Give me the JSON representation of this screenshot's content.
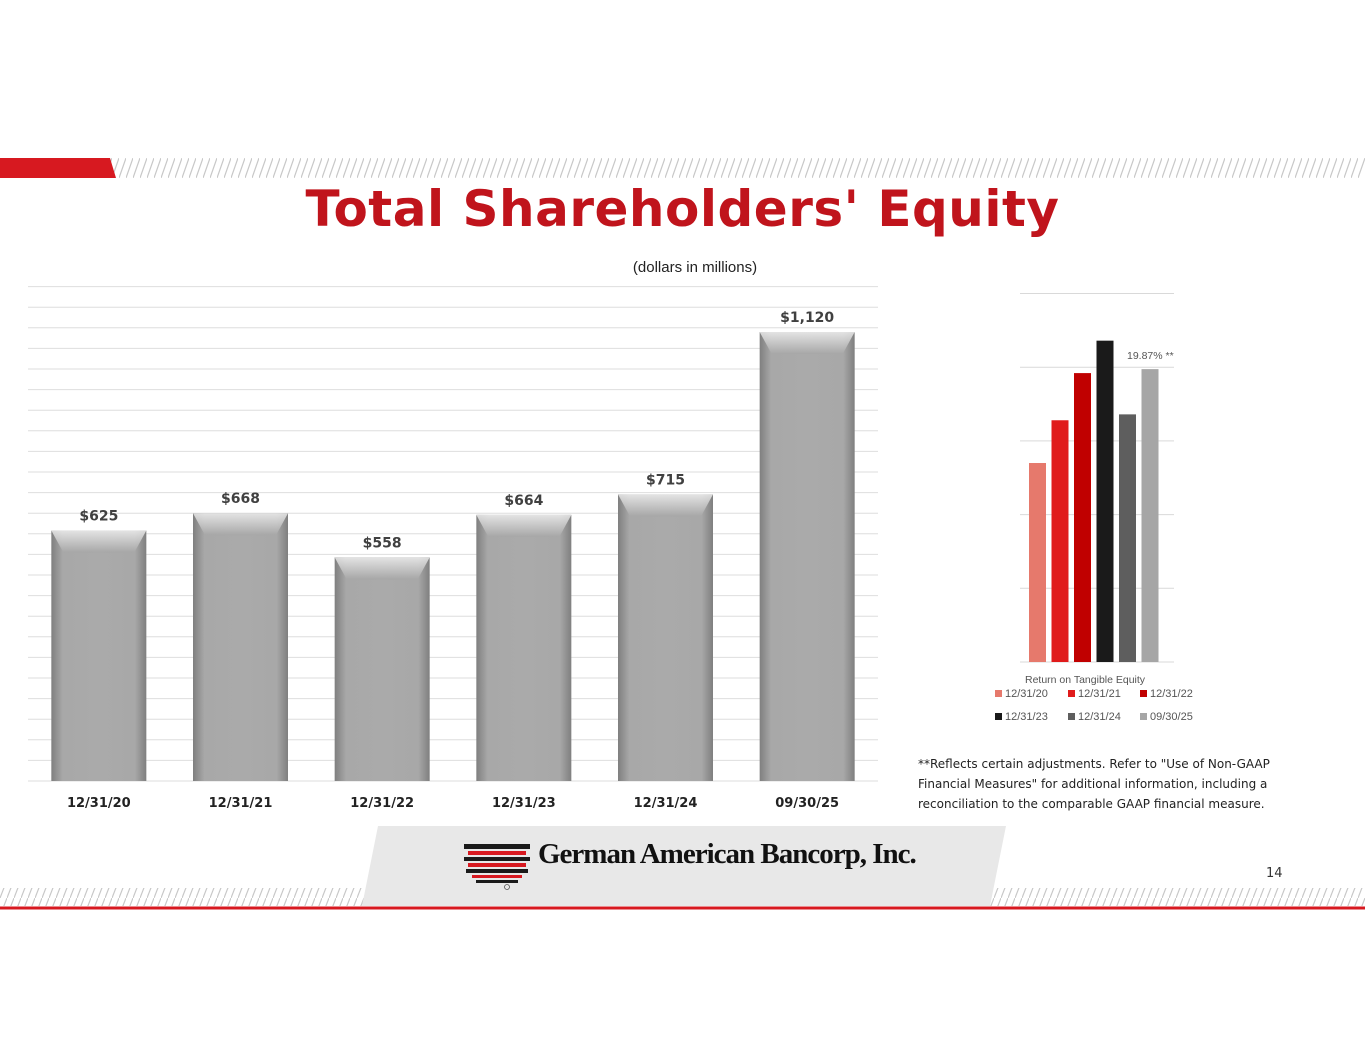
{
  "slide": {
    "title": "Total Shareholders' Equity",
    "subtitle": "(dollars in millions)",
    "page_number": "14",
    "company_name": "German American Bancorp, Inc.",
    "footnote": "**Reflects certain adjustments.  Refer to \"Use of Non-GAAP Financial Measures\" for additional information, including a reconciliation to the comparable GAAP financial measure."
  },
  "colors": {
    "brand_red": "#c0141c",
    "bar_gray": "#a6a6a6"
  },
  "chart_data": [
    {
      "type": "bar",
      "title": "Total Shareholders' Equity",
      "subtitle": "(dollars in millions)",
      "categories": [
        "12/31/20",
        "12/31/21",
        "12/31/22",
        "12/31/23",
        "12/31/24",
        "09/30/25"
      ],
      "values": [
        625,
        668,
        558,
        664,
        715,
        1120
      ],
      "data_labels": [
        "$625",
        "$668",
        "$558",
        "$664",
        "$715",
        "$1,120"
      ],
      "ylim": [
        0,
        1200
      ],
      "grid": true,
      "legend": "none"
    },
    {
      "type": "bar",
      "xlabel": "Return on Tangible Equity",
      "categories": [
        "Return on Tangible Equity"
      ],
      "series": [
        {
          "name": "12/31/20",
          "value": 13.5,
          "color": "#e6796c"
        },
        {
          "name": "12/31/21",
          "value": 16.4,
          "color": "#e01b1b"
        },
        {
          "name": "12/31/22",
          "value": 19.6,
          "color": "#c00000"
        },
        {
          "name": "12/31/23",
          "value": 21.8,
          "color": "#1a1a1a"
        },
        {
          "name": "12/31/24",
          "value": 16.8,
          "color": "#5e5e5e"
        },
        {
          "name": "09/30/25",
          "value": 19.87,
          "color": "#a6a6a6"
        }
      ],
      "annotation": "19.87% **",
      "ylim": [
        0,
        25
      ],
      "grid": true,
      "legend": "bottom"
    }
  ]
}
